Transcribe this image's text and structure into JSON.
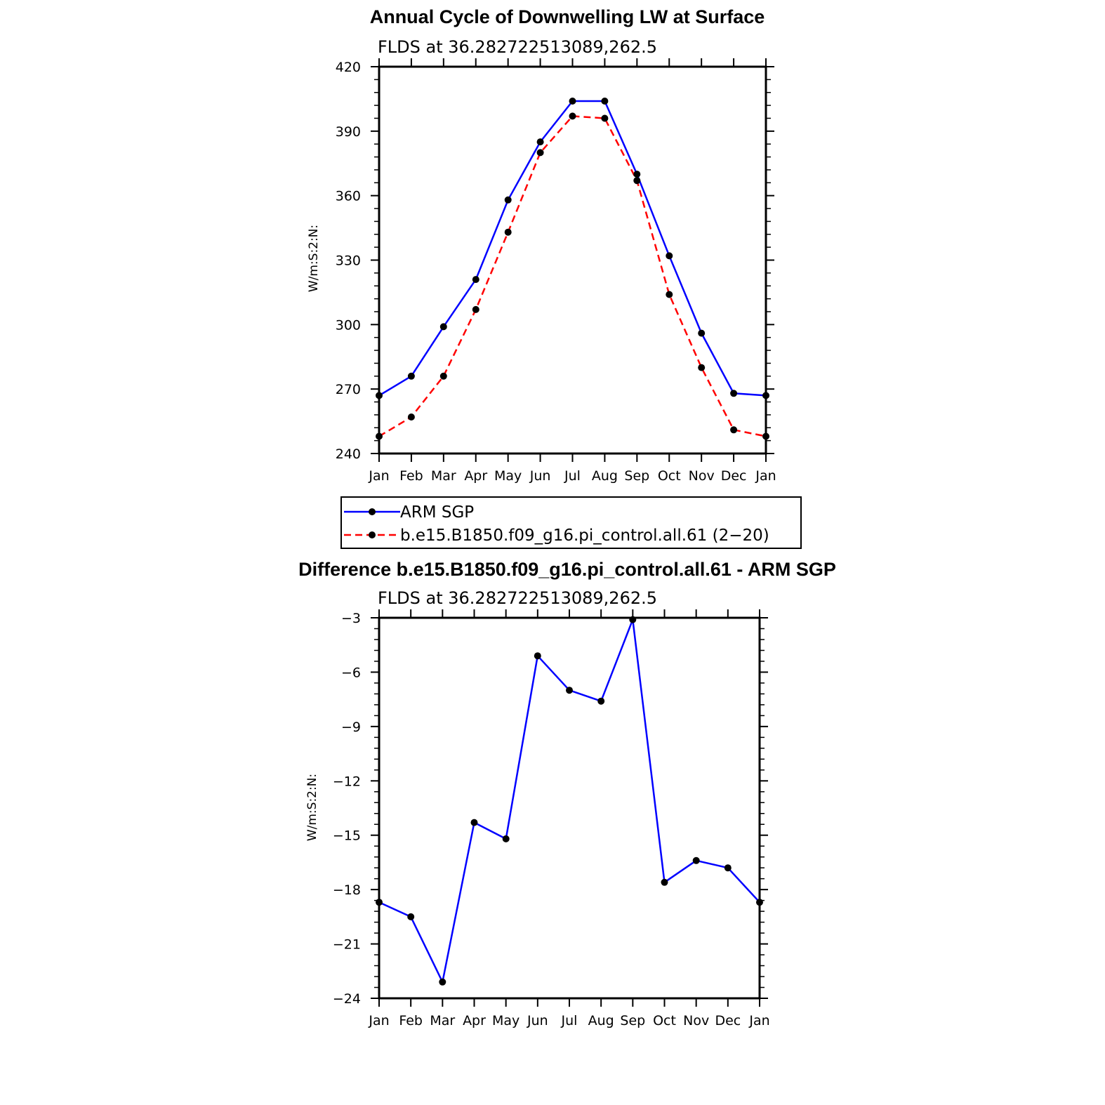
{
  "chart_data": [
    {
      "type": "line",
      "title": "Annual Cycle of Downwelling LW at Surface",
      "subtitle": "FLDS at 36.282722513089,262.5",
      "xlabel": "",
      "ylabel": "W/m:S:2:N:",
      "categories": [
        "Jan",
        "Feb",
        "Mar",
        "Apr",
        "May",
        "Jun",
        "Jul",
        "Aug",
        "Sep",
        "Oct",
        "Nov",
        "Dec",
        "Jan"
      ],
      "ylim": [
        240,
        420
      ],
      "yticks": [
        "240",
        "270",
        "300",
        "330",
        "360",
        "390",
        "420"
      ],
      "series": [
        {
          "name": "ARM SGP",
          "color": "#0000ff",
          "dash": "solid",
          "values": [
            267,
            276,
            299,
            321,
            358,
            385,
            404,
            404,
            370,
            332,
            296,
            268,
            267
          ]
        },
        {
          "name": "b.e15.B1850.f09_g16.pi_control.all.61 (2−20)",
          "color": "#ff0000",
          "dash": "dashed",
          "values": [
            248,
            257,
            276,
            307,
            343,
            380,
            397,
            396,
            367,
            314,
            280,
            251,
            248
          ]
        }
      ],
      "legend": "below"
    },
    {
      "type": "line",
      "title": "Difference b.e15.B1850.f09_g16.pi_control.all.61 - ARM SGP",
      "subtitle": "FLDS at 36.282722513089,262.5",
      "xlabel": "",
      "ylabel": "W/m:S:2:N:",
      "categories": [
        "Jan",
        "Feb",
        "Mar",
        "Apr",
        "May",
        "Jun",
        "Jul",
        "Aug",
        "Sep",
        "Oct",
        "Nov",
        "Dec",
        "Jan"
      ],
      "ylim": [
        -24,
        -3
      ],
      "yticks": [
        "−24",
        "−21",
        "−18",
        "−15",
        "−12",
        "−9",
        "−6",
        "−3"
      ],
      "series": [
        {
          "color": "#0000ff",
          "dash": "solid",
          "values": [
            -18.7,
            -19.5,
            -23.1,
            -14.3,
            -15.2,
            -5.1,
            -7.0,
            -7.6,
            -3.1,
            -17.6,
            -16.4,
            -16.8,
            -18.7
          ]
        }
      ]
    }
  ]
}
